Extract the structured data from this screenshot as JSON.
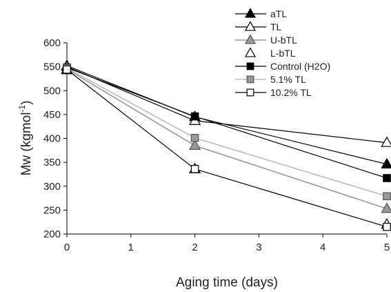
{
  "chart_data": {
    "type": "line",
    "xlabel": "Aging time (days)",
    "ylabel": "Mw (kgmol",
    "ylabel_sup": "-1",
    "ylabel_close": ")",
    "xlim": [
      0,
      5
    ],
    "ylim": [
      200,
      600
    ],
    "x_ticks": [
      "0",
      "1",
      "2",
      "3",
      "4",
      "5"
    ],
    "y_ticks": [
      "200",
      "250",
      "300",
      "350",
      "400",
      "450",
      "500",
      "550",
      "600"
    ],
    "grid": false,
    "legend_position": "top-right",
    "x": [
      0,
      2,
      5
    ],
    "series": [
      {
        "name": "aTL",
        "values": [
          552,
          445,
          346
        ],
        "line_color": "#000000",
        "marker": "triangle",
        "marker_fill": "#000000",
        "marker_stroke": "#000000",
        "has_line": true
      },
      {
        "name": "TL",
        "values": [
          550,
          437,
          391
        ],
        "line_color": "#000000",
        "marker": "triangle",
        "marker_fill": "#ffffff",
        "marker_stroke": "#000000",
        "has_line": true
      },
      {
        "name": "U-bTL",
        "values": [
          545,
          385,
          253
        ],
        "line_color": "#999999",
        "marker": "triangle",
        "marker_fill": "#999999",
        "marker_stroke": "#555555",
        "has_line": true
      },
      {
        "name": "L-bTL",
        "values": [
          543,
          336,
          220
        ],
        "line_color": "#000000",
        "marker": "triangle",
        "marker_fill": "#ffffff",
        "marker_stroke": "#000000",
        "has_line": false
      },
      {
        "name": "Control (H2O)",
        "values": [
          548,
          446,
          317
        ],
        "line_color": "#000000",
        "marker": "square",
        "marker_fill": "#000000",
        "marker_stroke": "#000000",
        "has_line": true
      },
      {
        "name": "5.1% TL",
        "values": [
          547,
          401,
          279
        ],
        "line_color": "#bbbbbb",
        "marker": "square",
        "marker_fill": "#999999",
        "marker_stroke": "#555555",
        "has_line": true
      },
      {
        "name": "10.2% TL",
        "values": [
          544,
          336,
          215
        ],
        "line_color": "#000000",
        "marker": "square",
        "marker_fill": "#ffffff",
        "marker_stroke": "#000000",
        "has_line": true
      }
    ]
  }
}
